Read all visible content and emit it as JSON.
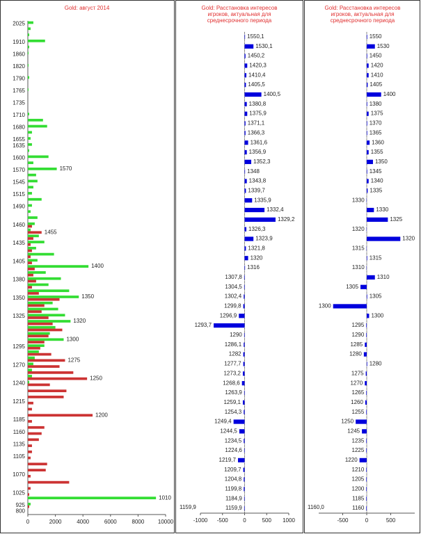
{
  "chart_data": [
    {
      "type": "bar",
      "orientation": "horizontal",
      "title": [
        "Gold: август 2014"
      ],
      "category_labels": "axis",
      "xlim": [
        0,
        10000
      ],
      "xticks": [
        0,
        2000,
        4000,
        6000,
        8000,
        10000
      ],
      "categories": [
        "2025",
        null,
        null,
        "1910",
        null,
        "1860",
        null,
        "1820",
        null,
        "1790",
        null,
        "1765",
        null,
        "1735",
        null,
        "1710",
        null,
        "1680",
        null,
        "1655",
        "1635",
        null,
        "1600",
        null,
        "1570",
        null,
        "1545",
        null,
        "1515",
        null,
        "1490",
        null,
        null,
        "1460",
        null,
        null,
        "1435",
        null,
        null,
        "1405",
        null,
        null,
        "1380",
        null,
        null,
        "1350",
        null,
        null,
        "1325",
        null,
        null,
        null,
        null,
        "1295",
        null,
        null,
        "1270",
        null,
        null,
        "1240",
        null,
        null,
        "1215",
        null,
        null,
        "1185",
        null,
        "1160",
        null,
        "1135",
        null,
        "1105",
        null,
        null,
        "1070",
        null,
        null,
        "1025",
        null,
        "925",
        "800"
      ],
      "series": [
        {
          "color": "#33dd33",
          "values": [
            400,
            200,
            100,
            1250,
            100,
            50,
            0,
            50,
            0,
            100,
            0,
            50,
            0,
            0,
            0,
            100,
            1100,
            1400,
            300,
            200,
            300,
            100,
            1500,
            400,
            2100,
            600,
            700,
            400,
            300,
            1000,
            300,
            200,
            700,
            500,
            200,
            800,
            1200,
            600,
            1900,
            700,
            4400,
            1300,
            2400,
            1500,
            3000,
            3700,
            1800,
            2200,
            2700,
            3100,
            2000,
            1600,
            2600,
            1200,
            800,
            500,
            400,
            300,
            300,
            100,
            0,
            0,
            0,
            0,
            0,
            0,
            0,
            0,
            0,
            0,
            0,
            0,
            0,
            0,
            0,
            0,
            0,
            0,
            9300,
            200,
            0
          ],
          "labels": [
            null,
            null,
            null,
            null,
            null,
            null,
            null,
            null,
            null,
            null,
            null,
            null,
            null,
            null,
            null,
            null,
            null,
            null,
            null,
            null,
            null,
            null,
            null,
            null,
            "1570",
            null,
            null,
            null,
            null,
            null,
            null,
            null,
            null,
            null,
            null,
            null,
            null,
            null,
            null,
            null,
            "1400",
            null,
            null,
            null,
            null,
            "1350",
            null,
            null,
            null,
            "1320",
            null,
            null,
            "1300",
            null,
            null,
            null,
            null,
            null,
            null,
            null,
            null,
            null,
            null,
            null,
            null,
            null,
            null,
            null,
            null,
            null,
            null,
            null,
            null,
            null,
            null,
            null,
            null,
            null,
            "1010",
            null,
            null
          ]
        },
        {
          "color": "#cc3333",
          "values": [
            0,
            0,
            0,
            0,
            0,
            0,
            0,
            0,
            0,
            0,
            0,
            0,
            0,
            0,
            0,
            0,
            0,
            0,
            0,
            0,
            0,
            0,
            0,
            0,
            0,
            0,
            0,
            0,
            0,
            0,
            0,
            0,
            0,
            300,
            1000,
            400,
            200,
            300,
            200,
            300,
            500,
            400,
            600,
            300,
            800,
            2300,
            1200,
            1000,
            1500,
            1800,
            2500,
            1500,
            1200,
            900,
            1700,
            2700,
            2300,
            3300,
            4300,
            1600,
            2800,
            2600,
            400,
            300,
            4700,
            300,
            1200,
            1000,
            800,
            300,
            300,
            200,
            1400,
            1300,
            200,
            3000,
            200,
            100,
            0,
            100,
            0
          ],
          "labels": [
            null,
            null,
            null,
            null,
            null,
            null,
            null,
            null,
            null,
            null,
            null,
            null,
            null,
            null,
            null,
            null,
            null,
            null,
            null,
            null,
            null,
            null,
            null,
            null,
            null,
            null,
            null,
            null,
            null,
            null,
            null,
            null,
            null,
            null,
            "1455",
            null,
            null,
            null,
            null,
            null,
            null,
            null,
            null,
            null,
            null,
            null,
            null,
            null,
            null,
            null,
            null,
            null,
            null,
            null,
            null,
            "1275",
            null,
            null,
            "1250",
            null,
            null,
            null,
            null,
            null,
            "1200",
            null,
            null,
            null,
            null,
            null,
            null,
            null,
            null,
            null,
            null,
            null,
            null,
            null,
            null,
            null,
            null
          ]
        }
      ]
    },
    {
      "type": "bar",
      "orientation": "horizontal",
      "title": [
        "Gold: Расстановка интересов",
        "игроков, актуальная для",
        "среднесрочного периода"
      ],
      "category_labels": "bar",
      "xlim": [
        -1000,
        1000
      ],
      "xticks": [
        -1000,
        -500,
        0,
        500,
        1000
      ],
      "color": "#0000dd",
      "corner_label": "1159,9",
      "categories": [
        "1550,1",
        "1530,1",
        "1450,2",
        "1420,3",
        "1410,4",
        "1405,5",
        "1400,5",
        "1380,8",
        "1375,9",
        "1371,1",
        "1366,3",
        "1361,6",
        "1356,9",
        "1352,3",
        "1348",
        "1343,8",
        "1339,7",
        "1335,9",
        "1332,4",
        "1329,2",
        "1326,3",
        "1323,9",
        "1321,8",
        "1320",
        "1316",
        "1307,8",
        "1304,5",
        "1302,4",
        "1299,8",
        "1296,9",
        "1293,7",
        "1290",
        "1286,1",
        "1282",
        "1277,7",
        "1273,2",
        "1268,6",
        "1263,9",
        "1259,1",
        "1254,3",
        "1249,4",
        "1244,5",
        "1234,5",
        "1224,6",
        "1219,7",
        "1209,7",
        "1204,8",
        "1199,8",
        "1184,9",
        "1159,9"
      ],
      "values": [
        10,
        200,
        20,
        60,
        40,
        30,
        380,
        50,
        60,
        20,
        20,
        80,
        50,
        150,
        10,
        50,
        30,
        170,
        450,
        700,
        40,
        200,
        30,
        80,
        10,
        -10,
        -10,
        -20,
        -30,
        -130,
        -700,
        -10,
        -20,
        -30,
        -30,
        -40,
        -60,
        -10,
        -40,
        -20,
        -250,
        -120,
        -20,
        -10,
        -150,
        -30,
        -20,
        -20,
        -10,
        -10
      ]
    },
    {
      "type": "bar",
      "orientation": "horizontal",
      "title": [
        "Gold: Расстановка интересов",
        "игроков, актуальная для",
        "среднесрочного периода"
      ],
      "category_labels": "bar",
      "xlim": [
        -1000,
        1000
      ],
      "xticks": [
        -500,
        0,
        500
      ],
      "color": "#0000dd",
      "corner_label": "1160,0",
      "categories": [
        "1550",
        "1530",
        "1450",
        "1420",
        "1410",
        "1405",
        "1400",
        "1380",
        "1375",
        "1370",
        "1365",
        "1360",
        "1355",
        "1350",
        "1345",
        "1340",
        "1335",
        "1330",
        "1330",
        "1325",
        "1320",
        "1320",
        "1315",
        "1315",
        "1310",
        "1310",
        "1305",
        "1305",
        "1300",
        "1300",
        "1295",
        "1290",
        "1285",
        "1280",
        "1280",
        "1275",
        "1270",
        "1265",
        "1260",
        "1255",
        "1250",
        "1245",
        "1235",
        "1225",
        "1220",
        "1210",
        "1205",
        "1200",
        "1185",
        "1160"
      ],
      "values": [
        10,
        170,
        10,
        40,
        40,
        20,
        300,
        10,
        40,
        10,
        10,
        60,
        40,
        130,
        10,
        40,
        20,
        -5,
        150,
        440,
        -5,
        700,
        -5,
        10,
        -5,
        170,
        -130,
        10,
        -700,
        50,
        -10,
        -10,
        -40,
        -60,
        10,
        -20,
        -40,
        -10,
        -30,
        -10,
        -230,
        -100,
        -10,
        -10,
        -150,
        -10,
        -10,
        -10,
        -10,
        -10
      ]
    }
  ]
}
